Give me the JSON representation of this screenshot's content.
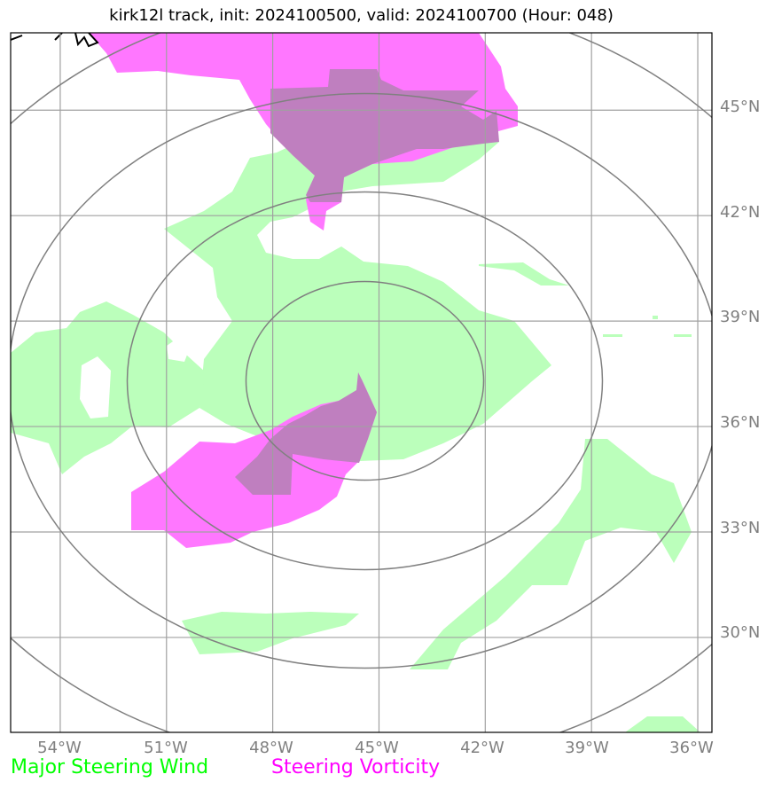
{
  "title": "kirk12l track, init: 2024100500, valid: 2024100700 (Hour: 048)",
  "map": {
    "lon_range": [
      -55.4,
      -35.6
    ],
    "lat_range": [
      27.3,
      47.2
    ],
    "center": {
      "lon": -45.4,
      "lat": 37.3
    },
    "lat_ticks": [
      {
        "value": 45,
        "label": "45°N"
      },
      {
        "value": 42,
        "label": "42°N"
      },
      {
        "value": 39,
        "label": "39°N"
      },
      {
        "value": 36,
        "label": "36°N"
      },
      {
        "value": 33,
        "label": "33°N"
      },
      {
        "value": 30,
        "label": "30°N"
      }
    ],
    "lon_ticks": [
      {
        "value": -54,
        "label": "54°W"
      },
      {
        "value": -51,
        "label": "51°W"
      },
      {
        "value": -48,
        "label": "48°W"
      },
      {
        "value": -45,
        "label": "45°W"
      },
      {
        "value": -42,
        "label": "42°W"
      },
      {
        "value": -39,
        "label": "39°W"
      },
      {
        "value": -36,
        "label": "36°W"
      }
    ],
    "colors": {
      "wind": "#bbffbb",
      "vorticity": "#ff77ff",
      "overlap": "#bf7fbf",
      "grid": "#a0a0a0",
      "rings": "#808080"
    }
  },
  "legend": {
    "wind_label": "Major Steering Wind",
    "vorticity_label": "Steering Vorticity",
    "wind_color": "#00ff00",
    "vorticity_color": "#ff00ff"
  }
}
